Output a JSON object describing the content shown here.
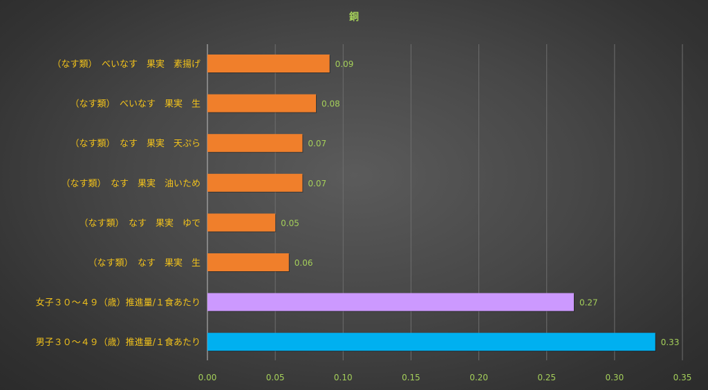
{
  "chart_data": {
    "type": "bar",
    "orientation": "horizontal",
    "title": "銅",
    "categories": [
      "（なす類）　べいなす　果実　素揚げ",
      "（なす類）　べいなす　果実　生",
      "（なす類）　なす　果実　天ぷら",
      "（なす類）　なす　果実　油いため",
      "（なす類）　なす　果実　ゆで",
      "（なす類）　なす　果実　生",
      "女子３０～４９（歳）推進量/１食あたり",
      "男子３０～４９（歳）推進量/１食あたり"
    ],
    "values": [
      0.09,
      0.08,
      0.07,
      0.07,
      0.05,
      0.06,
      0.27,
      0.33
    ],
    "value_labels": [
      "0.09",
      "0.08",
      "0.07",
      "0.07",
      "0.05",
      "0.06",
      "0.27",
      "0.33"
    ],
    "bar_colors": [
      "#f07f2b",
      "#f07f2b",
      "#f07f2b",
      "#f07f2b",
      "#f07f2b",
      "#f07f2b",
      "#cc99ff",
      "#00b0f0"
    ],
    "x_ticks": [
      "0.00",
      "0.05",
      "0.10",
      "0.15",
      "0.20",
      "0.25",
      "0.30",
      "0.35"
    ],
    "xlim": [
      0,
      0.35
    ],
    "grid": true,
    "legend": "none"
  },
  "colors": {
    "title": "#a5d05a",
    "category_text": "#f2c21b",
    "tick_text": "#a5d05a",
    "gridline": "#6e6e6e"
  }
}
